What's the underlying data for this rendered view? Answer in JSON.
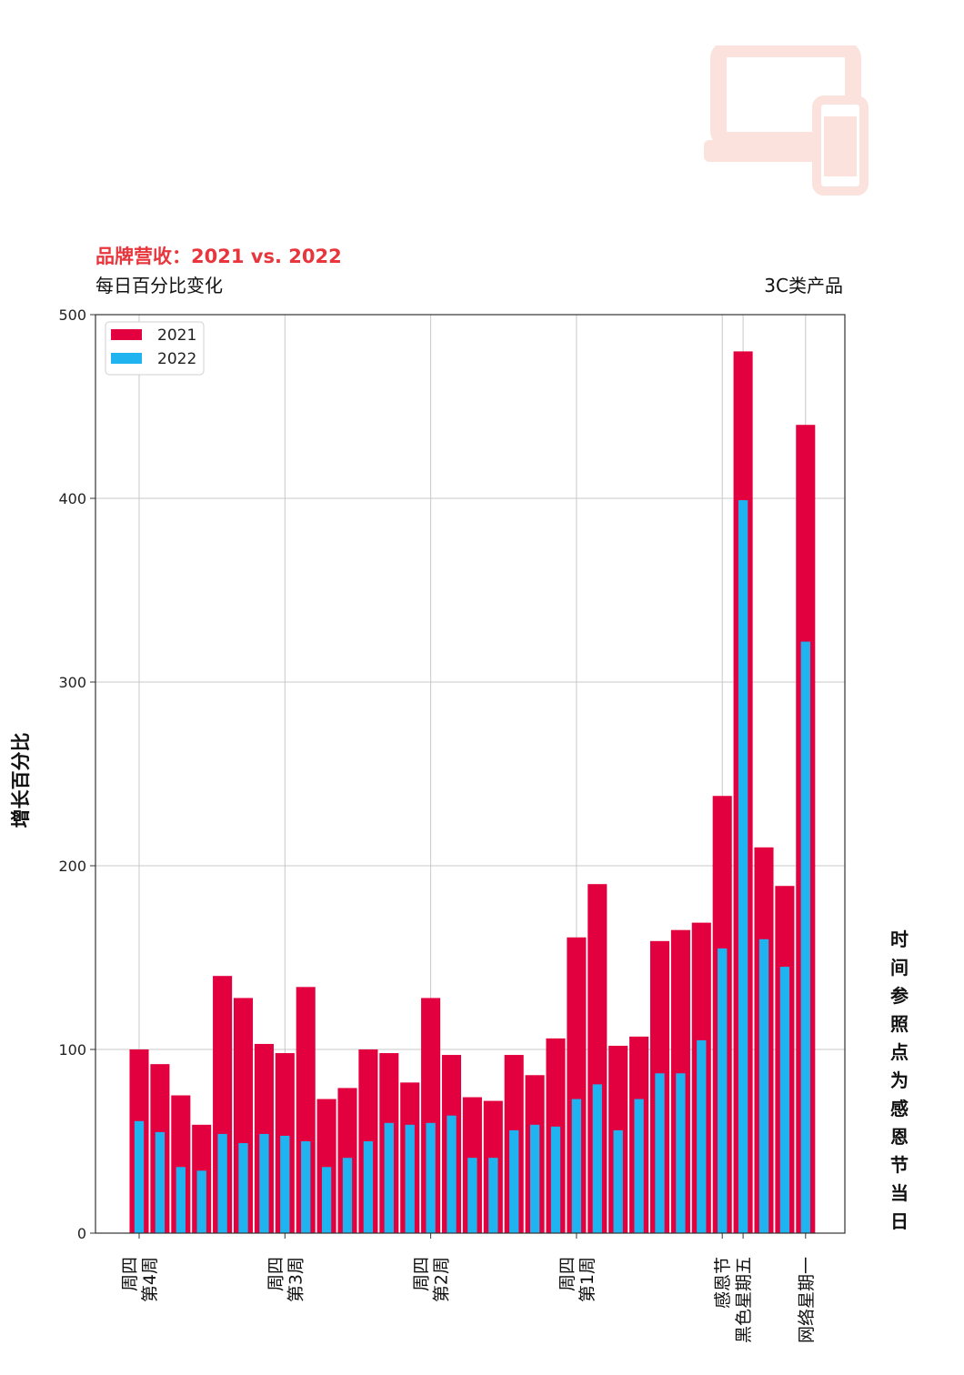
{
  "header": {
    "title": "品牌营收：2021 vs. 2022",
    "subtitle": "每日百分比变化",
    "category": "3C类产品"
  },
  "right_label": "时间参照点为感恩节当日",
  "colors": {
    "series_2021": "#e3003f",
    "series_2022": "#1fb4f0",
    "title": "#e8363d",
    "icon": "#fbe2dc"
  },
  "decor_icon": "laptop-and-phone-icon",
  "chart_data": {
    "type": "bar",
    "title": "品牌营收：2021 vs. 2022",
    "ylabel": "增长百分比",
    "ylim": [
      0,
      500
    ],
    "yticks": [
      0,
      100,
      200,
      300,
      400,
      500
    ],
    "grid": true,
    "legend": "top-left",
    "x": [
      0,
      1,
      2,
      3,
      4,
      5,
      6,
      7,
      8,
      9,
      10,
      11,
      12,
      13,
      14,
      15,
      16,
      17,
      18,
      19,
      20,
      21,
      22,
      23,
      24,
      25,
      26,
      27,
      28,
      29,
      30,
      31,
      32
    ],
    "xticks": [
      {
        "x": 0,
        "lines": [
          "周四",
          "第4周"
        ]
      },
      {
        "x": 7,
        "lines": [
          "周四",
          "第3周"
        ]
      },
      {
        "x": 14,
        "lines": [
          "周四",
          "第2周"
        ]
      },
      {
        "x": 21,
        "lines": [
          "周四",
          "第1周"
        ]
      },
      {
        "x": 28,
        "lines": [
          "感恩节"
        ]
      },
      {
        "x": 29,
        "lines": [
          "黑色星期五"
        ]
      },
      {
        "x": 32,
        "lines": [
          "网络星期一"
        ]
      }
    ],
    "series": [
      {
        "name": "2021",
        "values": [
          100,
          92,
          75,
          59,
          140,
          128,
          103,
          98,
          134,
          73,
          79,
          100,
          98,
          82,
          128,
          97,
          74,
          72,
          97,
          86,
          106,
          161,
          190,
          102,
          107,
          159,
          165,
          169,
          238,
          480,
          210,
          189,
          440
        ]
      },
      {
        "name": "2022",
        "values": [
          61,
          55,
          36,
          34,
          54,
          49,
          54,
          53,
          50,
          36,
          41,
          50,
          60,
          59,
          60,
          64,
          41,
          41,
          56,
          59,
          58,
          73,
          81,
          56,
          73,
          87,
          87,
          105,
          155,
          399,
          160,
          145,
          322
        ]
      }
    ]
  }
}
